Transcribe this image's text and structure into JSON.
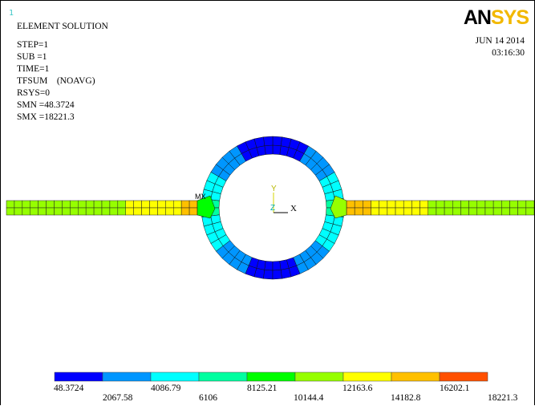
{
  "window_number": "1",
  "title": "ELEMENT SOLUTION",
  "info_lines": [
    "STEP=1",
    "SUB =1",
    "TIME=1",
    "TFSUM    (NOAVG)",
    "RSYS=0",
    "SMN =48.3724",
    "SMX =18221.3"
  ],
  "logo": {
    "primary": "AN",
    "secondary": "SYS"
  },
  "date": "JUN 14 2014",
  "time": "03:16:30",
  "triad": {
    "y_label": "Y",
    "z_label": "Z",
    "x_label": "X"
  },
  "node_marker": "MX",
  "legend": {
    "colors": [
      "#0000ff",
      "#0096ff",
      "#00ffff",
      "#00ffa0",
      "#00ff00",
      "#96ff00",
      "#ffff00",
      "#ffc000",
      "#ff5000"
    ],
    "upper_labels": [
      "48.3724",
      "4086.79",
      "8125.21",
      "12163.6",
      "16202.1"
    ],
    "lower_labels": [
      "2067.58",
      "6106",
      "10144.4",
      "14182.8",
      "18221.3"
    ]
  },
  "colors": {
    "accent_logo": "#f2b800",
    "window_number": "#3fc7c7"
  }
}
